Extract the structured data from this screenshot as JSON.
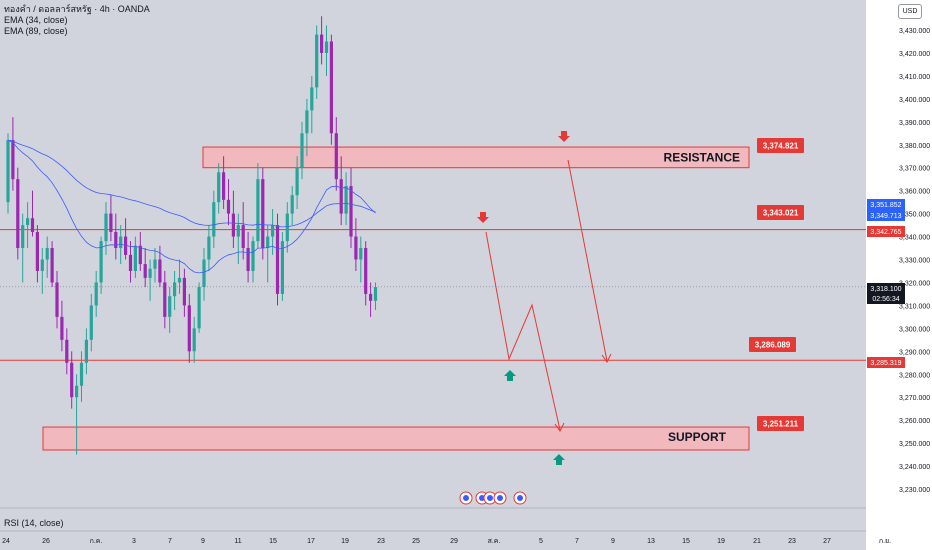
{
  "legend": {
    "symbol": "ทองคำ / ดอลลาร์สหรัฐ · 4h · OANDA",
    "ema1": "EMA (34, close)",
    "ema2": "EMA (89, close)"
  },
  "currency_button": "USD",
  "rsi_label": "RSI (14, close)",
  "colors": {
    "background": "#d1d4dc",
    "up_candle": "#26a69a",
    "down_candle": "#9c27b0",
    "zone_line": "#e53935",
    "zone_fill": "#f1b8be",
    "ema_line": "#3d5afe",
    "arrow_up": "#089981",
    "arrow_down": "#e53935"
  },
  "chart_data": {
    "type": "candlestick",
    "y_axis": {
      "min": 3230000,
      "max": 3440000,
      "ticks": [
        "3,230.000",
        "3,240.000",
        "3,250.000",
        "3,260.000",
        "3,270.000",
        "3,280.000",
        "3,290.000",
        "3,300.000",
        "3,310.000",
        "3,320.000",
        "3,330.000",
        "3,340.000",
        "3,350.000",
        "3,360.000",
        "3,370.000",
        "3,380.000",
        "3,390.000",
        "3,400.000",
        "3,410.000",
        "3,420.000",
        "3,430.000"
      ]
    },
    "x_axis": {
      "labels": [
        "24",
        "26",
        "ก.ค.",
        "3",
        "7",
        "9",
        "11",
        "15",
        "17",
        "19",
        "23",
        "25",
        "29",
        "ส.ค.",
        "5",
        "7",
        "9",
        "13",
        "15",
        "19",
        "21",
        "23",
        "27",
        "ก.ย."
      ]
    },
    "price_tags": [
      {
        "value": 3351852,
        "label": "3,351.852",
        "color": "#2962ff"
      },
      {
        "value": 3349713,
        "label": "3,349.713",
        "color": "#2962ff"
      },
      {
        "value": 3342765,
        "label": "3,342.765",
        "color": "#e53935"
      },
      {
        "value": 3318100,
        "label": "3,318.100",
        "color": "#131722"
      },
      {
        "value": 3285319,
        "label": "3,285.319",
        "color": "#e53935"
      }
    ],
    "countdown": "02:56:34",
    "levels": [
      {
        "name": "resistance",
        "label": "RESISTANCE",
        "value": 3374821,
        "value_label": "3,374.821",
        "zone": [
          3370000,
          3379000
        ]
      },
      {
        "name": "level",
        "value": 3343021,
        "value_label": "3,343.021"
      },
      {
        "name": "level",
        "value": 3286089,
        "value_label": "3,286.089"
      },
      {
        "name": "support",
        "label": "SUPPORT",
        "value": 3251211,
        "value_label": "3,251.211",
        "zone": [
          3247000,
          3257000
        ]
      }
    ],
    "candles": [
      [
        3355,
        3385,
        3350,
        3382
      ],
      [
        3382,
        3392,
        3360,
        3365
      ],
      [
        3365,
        3370,
        3330,
        3335
      ],
      [
        3335,
        3350,
        3320,
        3345
      ],
      [
        3345,
        3355,
        3335,
        3348
      ],
      [
        3348,
        3360,
        3340,
        3342
      ],
      [
        3342,
        3345,
        3320,
        3325
      ],
      [
        3325,
        3335,
        3315,
        3330
      ],
      [
        3330,
        3340,
        3322,
        3335
      ],
      [
        3335,
        3338,
        3318,
        3320
      ],
      [
        3320,
        3325,
        3300,
        3305
      ],
      [
        3305,
        3312,
        3290,
        3295
      ],
      [
        3295,
        3300,
        3280,
        3285
      ],
      [
        3285,
        3290,
        3265,
        3270
      ],
      [
        3270,
        3280,
        3245,
        3275
      ],
      [
        3275,
        3290,
        3268,
        3285
      ],
      [
        3285,
        3300,
        3280,
        3295
      ],
      [
        3295,
        3315,
        3290,
        3310
      ],
      [
        3310,
        3325,
        3305,
        3320
      ],
      [
        3320,
        3340,
        3315,
        3338
      ],
      [
        3338,
        3355,
        3332,
        3350
      ],
      [
        3350,
        3358,
        3338,
        3342
      ],
      [
        3342,
        3350,
        3330,
        3335
      ],
      [
        3335,
        3345,
        3328,
        3340
      ],
      [
        3340,
        3348,
        3330,
        3332
      ],
      [
        3332,
        3338,
        3320,
        3325
      ],
      [
        3325,
        3340,
        3322,
        3336
      ],
      [
        3336,
        3342,
        3325,
        3328
      ],
      [
        3328,
        3335,
        3318,
        3322
      ],
      [
        3322,
        3330,
        3312,
        3326
      ],
      [
        3326,
        3335,
        3320,
        3330
      ],
      [
        3330,
        3336,
        3318,
        3320
      ],
      [
        3320,
        3325,
        3300,
        3305
      ],
      [
        3305,
        3318,
        3298,
        3314
      ],
      [
        3314,
        3325,
        3308,
        3320
      ],
      [
        3320,
        3330,
        3315,
        3322
      ],
      [
        3322,
        3326,
        3305,
        3310
      ],
      [
        3310,
        3315,
        3285,
        3290
      ],
      [
        3290,
        3305,
        3285,
        3300
      ],
      [
        3300,
        3320,
        3298,
        3318
      ],
      [
        3318,
        3335,
        3312,
        3330
      ],
      [
        3330,
        3345,
        3325,
        3340
      ],
      [
        3340,
        3360,
        3335,
        3355
      ],
      [
        3355,
        3372,
        3350,
        3368
      ],
      [
        3368,
        3375,
        3352,
        3356
      ],
      [
        3356,
        3365,
        3345,
        3350
      ],
      [
        3350,
        3360,
        3335,
        3340
      ],
      [
        3340,
        3350,
        3328,
        3345
      ],
      [
        3345,
        3355,
        3330,
        3335
      ],
      [
        3335,
        3342,
        3320,
        3325
      ],
      [
        3325,
        3340,
        3320,
        3338
      ],
      [
        3338,
        3372,
        3335,
        3365
      ],
      [
        3365,
        3370,
        3330,
        3335
      ],
      [
        3335,
        3345,
        3320,
        3340
      ],
      [
        3340,
        3352,
        3332,
        3345
      ],
      [
        3345,
        3350,
        3310,
        3315
      ],
      [
        3315,
        3342,
        3312,
        3338
      ],
      [
        3338,
        3355,
        3333,
        3350
      ],
      [
        3350,
        3362,
        3345,
        3358
      ],
      [
        3358,
        3375,
        3352,
        3370
      ],
      [
        3370,
        3390,
        3365,
        3385
      ],
      [
        3385,
        3400,
        3375,
        3395
      ],
      [
        3395,
        3410,
        3385,
        3405
      ],
      [
        3405,
        3432,
        3400,
        3428
      ],
      [
        3428,
        3436,
        3415,
        3420
      ],
      [
        3420,
        3432,
        3410,
        3425
      ],
      [
        3425,
        3428,
        3380,
        3385
      ],
      [
        3385,
        3392,
        3360,
        3365
      ],
      [
        3365,
        3375,
        3345,
        3350
      ],
      [
        3350,
        3368,
        3345,
        3362
      ],
      [
        3362,
        3370,
        3335,
        3340
      ],
      [
        3340,
        3348,
        3325,
        3330
      ],
      [
        3330,
        3340,
        3320,
        3335
      ],
      [
        3335,
        3338,
        3310,
        3315
      ],
      [
        3315,
        3320,
        3305,
        3312
      ],
      [
        3312,
        3320,
        3308,
        3318
      ]
    ]
  }
}
